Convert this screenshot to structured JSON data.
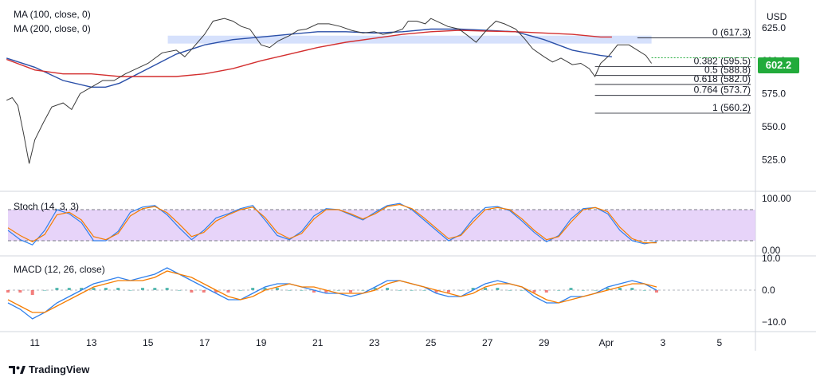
{
  "header": {
    "currency": "USD",
    "ma100_label": "MA (100, close, 0)",
    "ma200_label": "MA (200, close, 0)",
    "stoch_label": "Stoch (14, 3, 3)",
    "macd_label": "MACD (12, 26, close)",
    "last_price": "602.2",
    "brand": "TradingView"
  },
  "colors": {
    "ma100": "#2a4fa8",
    "ma200": "#d32f2f",
    "stoch_k": "#2f80ed",
    "stoch_d": "#f57c00",
    "stoch_band": "#e1c9f7",
    "macd_line": "#2f80ed",
    "signal_line": "#f57c00",
    "hist_pos": "#26a69a",
    "hist_neg": "#ef5350",
    "zone": "#cfdcfb",
    "last_price_badge": "#22ab3b"
  },
  "chart_data": [
    {
      "type": "line",
      "panel": "price",
      "x_ticks": [
        "11",
        "13",
        "15",
        "17",
        "19",
        "21",
        "23",
        "25",
        "27",
        "29",
        "Apr",
        "3",
        "5"
      ],
      "y_ticks": [
        "625.0",
        "600.0",
        "575.0",
        "550.0",
        "525.0"
      ],
      "ylim": [
        504,
        640
      ],
      "series": [
        {
          "name": "MA (100, close, 0)",
          "points": [
            [
              10,
              602
            ],
            [
              11,
              595
            ],
            [
              12,
              585
            ],
            [
              13,
              580
            ],
            [
              13.5,
              580
            ],
            [
              14,
              583
            ],
            [
              15,
              594
            ],
            [
              16,
              605
            ],
            [
              17,
              612
            ],
            [
              18,
              616
            ],
            [
              19,
              618
            ],
            [
              20,
              620
            ],
            [
              21,
              622
            ],
            [
              22,
              622
            ],
            [
              23,
              621
            ],
            [
              24,
              622
            ],
            [
              25,
              624
            ],
            [
              26,
              624
            ],
            [
              27,
              623
            ],
            [
              28,
              622
            ],
            [
              28.5,
              619
            ],
            [
              29,
              616
            ],
            [
              29.5,
              612
            ],
            [
              30,
              608
            ],
            [
              30.5,
              606
            ],
            [
              31,
              604
            ],
            [
              31.4,
              603
            ]
          ]
        },
        {
          "name": "MA (200, close, 0)",
          "points": [
            [
              10,
              601
            ],
            [
              11,
              593
            ],
            [
              12,
              590
            ],
            [
              13,
              590
            ],
            [
              14,
              588
            ],
            [
              15,
              588
            ],
            [
              16,
              588
            ],
            [
              17,
              590
            ],
            [
              18,
              594
            ],
            [
              19,
              600
            ],
            [
              20,
              605
            ],
            [
              21,
              610
            ],
            [
              22,
              614
            ],
            [
              23,
              617
            ],
            [
              24,
              620
            ],
            [
              25,
              622
            ],
            [
              26,
              623
            ],
            [
              27,
              622.5
            ],
            [
              28,
              622
            ],
            [
              29,
              621
            ],
            [
              30,
              620
            ],
            [
              31,
              618
            ],
            [
              31.4,
              618
            ]
          ]
        },
        {
          "name": "Price",
          "points": [
            [
              10,
              570
            ],
            [
              10.2,
              572
            ],
            [
              10.4,
              566
            ],
            [
              10.6,
              545
            ],
            [
              10.8,
              522
            ],
            [
              11,
              540
            ],
            [
              11.3,
              553
            ],
            [
              11.6,
              565
            ],
            [
              12,
              568
            ],
            [
              12.3,
              563
            ],
            [
              12.6,
              575
            ],
            [
              13,
              580
            ],
            [
              13.4,
              585
            ],
            [
              13.8,
              585
            ],
            [
              14.2,
              590
            ],
            [
              14.6,
              594
            ],
            [
              15,
              598
            ],
            [
              15.5,
              606
            ],
            [
              16,
              608
            ],
            [
              16.3,
              603
            ],
            [
              16.6,
              610
            ],
            [
              17,
              620
            ],
            [
              17.3,
              630
            ],
            [
              17.7,
              632
            ],
            [
              18,
              630
            ],
            [
              18.3,
              626
            ],
            [
              18.6,
              624
            ],
            [
              19,
              612
            ],
            [
              19.3,
              610
            ],
            [
              19.6,
              615
            ],
            [
              20,
              619
            ],
            [
              20.3,
              623
            ],
            [
              20.6,
              624
            ],
            [
              21,
              628
            ],
            [
              21.4,
              628
            ],
            [
              21.8,
              626
            ],
            [
              22.2,
              623
            ],
            [
              22.6,
              621
            ],
            [
              23,
              622
            ],
            [
              23.3,
              620
            ],
            [
              23.6,
              621
            ],
            [
              24,
              624
            ],
            [
              24.2,
              630
            ],
            [
              24.5,
              630
            ],
            [
              24.8,
              628
            ],
            [
              25,
              632
            ],
            [
              25.3,
              629
            ],
            [
              25.6,
              626
            ],
            [
              26,
              624
            ],
            [
              26.3,
              619
            ],
            [
              26.6,
              614
            ],
            [
              27,
              624
            ],
            [
              27.3,
              630
            ],
            [
              27.6,
              628
            ],
            [
              28,
              624
            ],
            [
              28.3,
              617
            ],
            [
              28.6,
              609
            ],
            [
              29,
              603
            ],
            [
              29.3,
              599
            ],
            [
              29.6,
              602
            ],
            [
              30,
              597
            ],
            [
              30.3,
              598
            ],
            [
              30.6,
              594
            ],
            [
              30.8,
              588
            ],
            [
              31,
              598
            ],
            [
              31.3,
              604
            ],
            [
              31.6,
              612
            ],
            [
              32,
              612
            ],
            [
              32.3,
              608
            ],
            [
              32.6,
              604
            ],
            [
              32.8,
              598
            ]
          ]
        }
      ],
      "fibonacci": [
        {
          "level": "0",
          "value": 617.3
        },
        {
          "level": "0.382",
          "value": 595.5
        },
        {
          "level": "0.5",
          "value": 588.8
        },
        {
          "level": "0.618",
          "value": 582.0
        },
        {
          "level": "0.764",
          "value": 573.7
        },
        {
          "level": "1",
          "value": 560.2
        }
      ]
    },
    {
      "type": "line",
      "panel": "stochastic",
      "y_ticks": [
        "100.00",
        "0.00"
      ],
      "ylim": [
        0,
        100
      ],
      "band": [
        20,
        80
      ],
      "series": [
        {
          "name": "%K",
          "values": [
            40,
            22,
            12,
            40,
            80,
            72,
            55,
            20,
            20,
            38,
            75,
            85,
            88,
            70,
            45,
            22,
            40,
            64,
            72,
            82,
            88,
            60,
            30,
            22,
            38,
            68,
            82,
            80,
            70,
            60,
            75,
            88,
            92,
            80,
            60,
            40,
            20,
            32,
            62,
            84,
            86,
            78,
            58,
            36,
            18,
            30,
            62,
            82,
            84,
            72,
            40,
            20,
            14,
            18
          ]
        },
        {
          "name": "%D",
          "values": [
            45,
            30,
            18,
            32,
            70,
            75,
            60,
            28,
            22,
            34,
            68,
            82,
            86,
            74,
            52,
            28,
            36,
            58,
            70,
            80,
            85,
            65,
            36,
            24,
            34,
            62,
            80,
            80,
            72,
            62,
            72,
            86,
            90,
            82,
            64,
            44,
            24,
            30,
            56,
            80,
            84,
            80,
            62,
            40,
            22,
            28,
            56,
            80,
            84,
            76,
            46,
            24,
            16,
            16
          ]
        }
      ]
    },
    {
      "type": "line",
      "panel": "macd",
      "y_ticks": [
        "10.0",
        "0.0",
        "−10.0"
      ],
      "ylim": [
        -12,
        12
      ],
      "series": [
        {
          "name": "MACD",
          "values": [
            -4,
            -6,
            -9,
            -7,
            -4,
            -2,
            0,
            2,
            3,
            4,
            3,
            4,
            5,
            7,
            5,
            3,
            1,
            -1,
            -3,
            -3,
            -1,
            1,
            2,
            2,
            1,
            0,
            -1,
            -1,
            -2,
            -1,
            1,
            3,
            3,
            2,
            1,
            -1,
            -2,
            -2,
            0,
            2,
            3,
            2,
            1,
            -2,
            -4,
            -4,
            -2,
            -2,
            -1,
            1,
            2,
            3,
            2,
            0
          ]
        },
        {
          "name": "Signal",
          "values": [
            -3,
            -5,
            -7,
            -7,
            -5,
            -3,
            -1,
            1,
            2,
            3,
            3,
            3,
            4,
            6,
            5,
            4,
            2,
            0,
            -2,
            -3,
            -2,
            0,
            1,
            2,
            1,
            1,
            0,
            -1,
            -1,
            -1,
            0,
            2,
            3,
            2,
            1,
            0,
            -1,
            -2,
            -1,
            1,
            2,
            2,
            1,
            -1,
            -3,
            -4,
            -3,
            -2,
            -1,
            0,
            1,
            2,
            2,
            1
          ]
        }
      ]
    }
  ]
}
